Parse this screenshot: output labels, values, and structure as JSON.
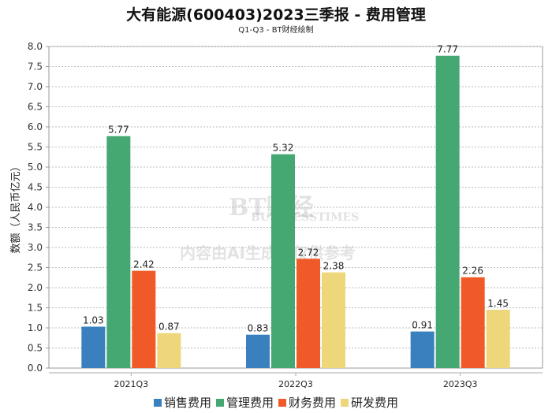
{
  "chart_data": {
    "type": "bar",
    "title": "大有能源(600403)2023三季报 - 费用管理",
    "subtitle": "Q1-Q3 - BT财经绘制",
    "xlabel": "",
    "ylabel": "数额（人民币亿元）",
    "ylim": [
      0,
      8.0
    ],
    "yticks": [
      "0.0",
      "0.5",
      "1.0",
      "1.5",
      "2.0",
      "2.5",
      "3.0",
      "3.5",
      "4.0",
      "4.5",
      "5.0",
      "5.5",
      "6.0",
      "6.5",
      "7.0",
      "7.5",
      "8.0"
    ],
    "grid": true,
    "legend_position": "bottom",
    "categories": [
      "2021Q3",
      "2022Q3",
      "2023Q3"
    ],
    "series": [
      {
        "name": "销售费用",
        "color": "#3a80bf",
        "values": [
          1.03,
          0.83,
          0.91
        ]
      },
      {
        "name": "管理费用",
        "color": "#45a873",
        "values": [
          5.77,
          5.32,
          7.77
        ]
      },
      {
        "name": "财务费用",
        "color": "#f05a28",
        "values": [
          2.42,
          2.72,
          2.26
        ]
      },
      {
        "name": "研发费用",
        "color": "#eed67a",
        "values": [
          0.87,
          2.38,
          1.45
        ]
      }
    ]
  },
  "watermark": {
    "brand": "BT财经",
    "brand_en": "BUSINESSTIMES",
    "notice": "内容由AI生成，仅供参考"
  }
}
